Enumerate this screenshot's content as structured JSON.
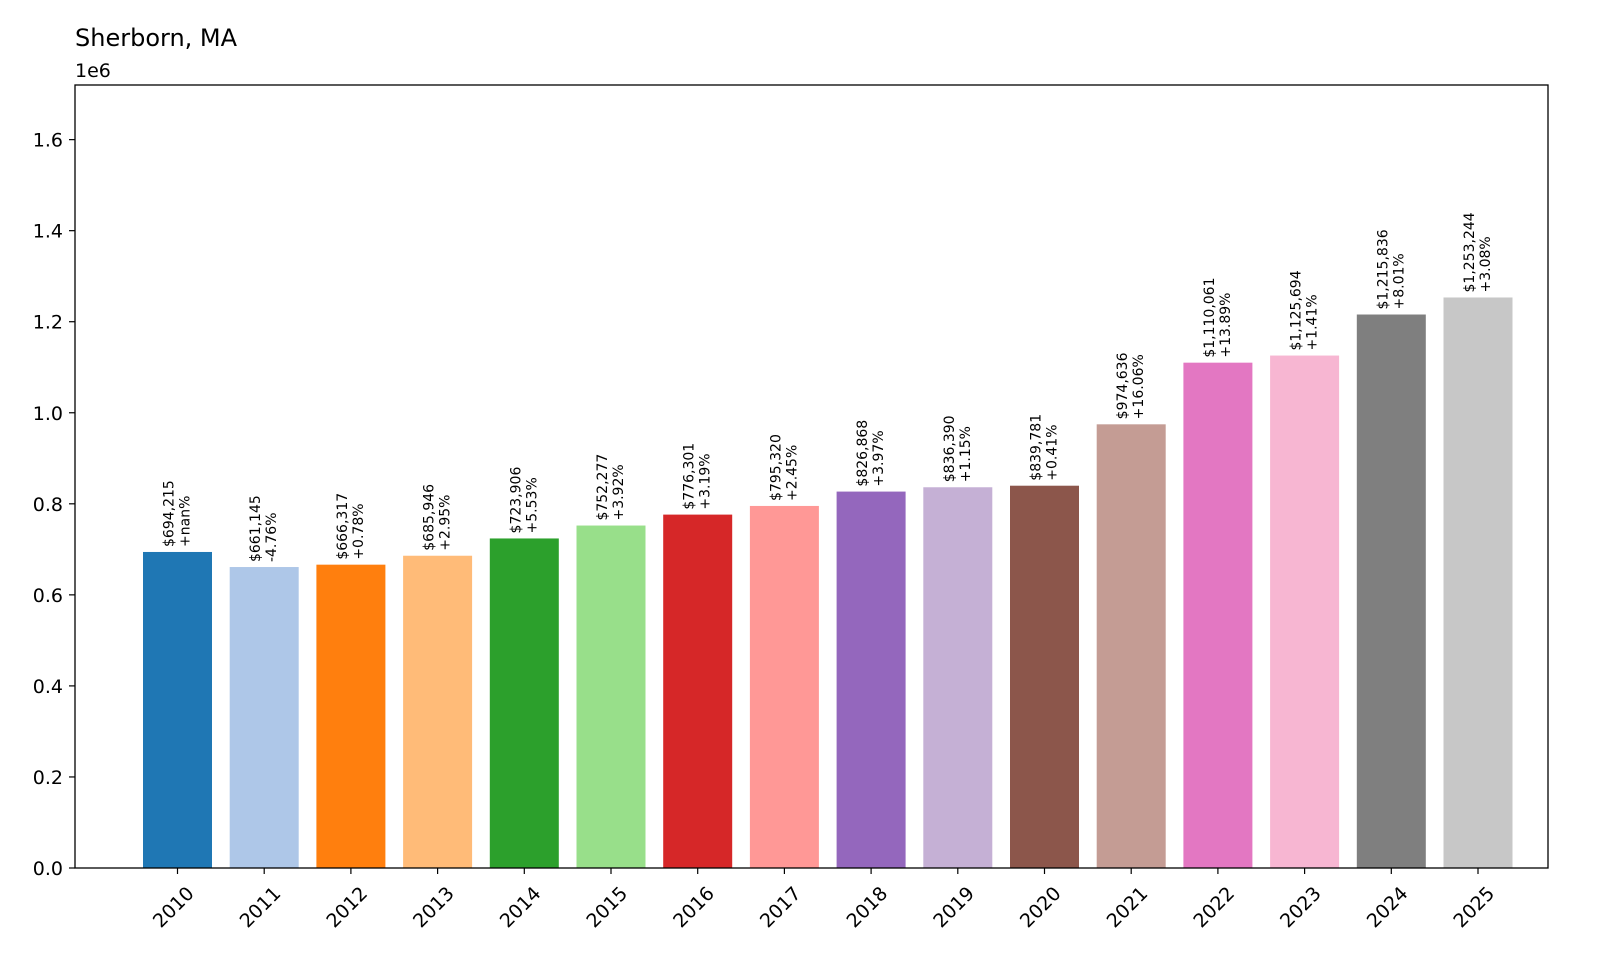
{
  "chart_data": {
    "type": "bar",
    "title": "Sherborn, MA",
    "y_offset_label": "1e6",
    "xlabel": "",
    "ylabel": "",
    "ylim": [
      0,
      1.72
    ],
    "yticks": [
      0.0,
      0.2,
      0.4,
      0.6,
      0.8,
      1.0,
      1.2,
      1.4,
      1.6
    ],
    "ytick_labels": [
      "0.0",
      "0.2",
      "0.4",
      "0.6",
      "0.8",
      "1.0",
      "1.2",
      "1.4",
      "1.6"
    ],
    "grid": false,
    "categories": [
      "2010",
      "2011",
      "2012",
      "2013",
      "2014",
      "2015",
      "2016",
      "2017",
      "2018",
      "2019",
      "2020",
      "2021",
      "2022",
      "2023",
      "2024",
      "2025"
    ],
    "values": [
      694215,
      661145,
      666317,
      685946,
      723906,
      752277,
      776301,
      795320,
      826868,
      836390,
      839781,
      974636,
      1110061,
      1125694,
      1215836,
      1253244
    ],
    "value_labels": [
      "$694,215",
      "$661,145",
      "$666,317",
      "$685,946",
      "$723,906",
      "$752,277",
      "$776,301",
      "$795,320",
      "$826,868",
      "$836,390",
      "$839,781",
      "$974,636",
      "$1,110,061",
      "$1,125,694",
      "$1,215,836",
      "$1,253,244"
    ],
    "change_labels": [
      "+nan%",
      "-4.76%",
      "+0.78%",
      "+2.95%",
      "+5.53%",
      "+3.92%",
      "+3.19%",
      "+2.45%",
      "+3.97%",
      "+1.15%",
      "+0.41%",
      "+16.06%",
      "+13.89%",
      "+1.41%",
      "+8.01%",
      "+3.08%"
    ],
    "colors": [
      "#1f77b4",
      "#aec7e8",
      "#ff7f0e",
      "#ffbb78",
      "#2ca02c",
      "#98df8a",
      "#d62728",
      "#ff9896",
      "#9467bd",
      "#c5b0d5",
      "#8c564b",
      "#c49c94",
      "#e377c2",
      "#f7b6d2",
      "#7f7f7f",
      "#c7c7c7"
    ]
  }
}
